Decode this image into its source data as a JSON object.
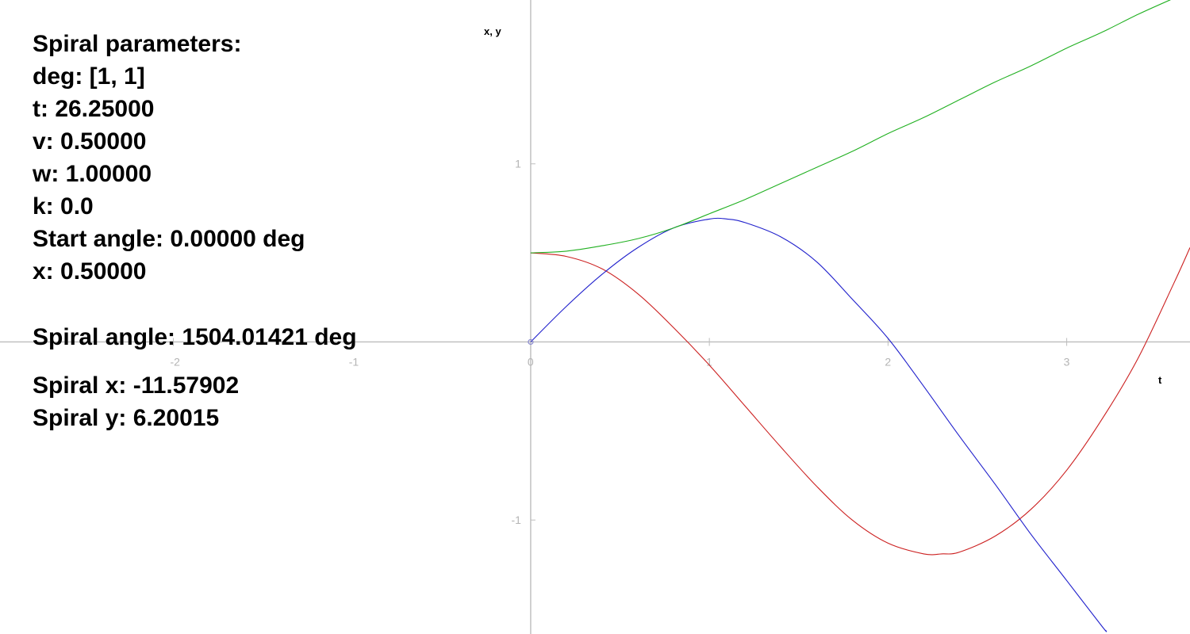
{
  "info_panel": {
    "heading": "Spiral parameters:",
    "deg": "deg: [1, 1]",
    "t": "t: 26.25000",
    "v": "v: 0.50000",
    "w": "w: 1.00000",
    "k": "k: 0.0",
    "start_angle": "Start angle: 0.00000 deg",
    "x": "x: 0.50000",
    "spiral_angle": "Spiral angle: 1504.01421 deg",
    "spiral_x": "Spiral x: -11.57902",
    "spiral_y": "Spiral y: 6.20015"
  },
  "chart_data": {
    "type": "line",
    "xlabel": "t",
    "ylabel": "x, y",
    "xlim": [
      -2.97,
      3.69
    ],
    "ylim": [
      -1.64,
      1.92
    ],
    "grid": false,
    "x_ticks": [
      -2,
      -1,
      0,
      1,
      2,
      3
    ],
    "x_tick_labels": [
      "-2",
      "-1",
      "0",
      "1",
      "2",
      "3"
    ],
    "y_ticks": [
      -1,
      1
    ],
    "y_tick_labels": [
      "-1",
      "1"
    ],
    "origin_marker": {
      "x": 0,
      "y": 0,
      "color": "#8a8ad0"
    },
    "series": [
      {
        "color": "#cc2020",
        "x": [
          0,
          0.2,
          0.4,
          0.6,
          0.8,
          1.0,
          1.2,
          1.4,
          1.6,
          1.8,
          2.0,
          2.2,
          2.3,
          2.4,
          2.6,
          2.8,
          3.0,
          3.2,
          3.4,
          3.6,
          3.69
        ],
        "y": [
          0.5,
          0.48,
          0.41,
          0.27,
          0.08,
          -0.13,
          -0.36,
          -0.59,
          -0.81,
          -1.0,
          -1.13,
          -1.19,
          -1.19,
          -1.18,
          -1.09,
          -0.94,
          -0.72,
          -0.43,
          -0.09,
          0.33,
          0.53
        ]
      },
      {
        "color": "#2020cc",
        "x": [
          0,
          0.2,
          0.4,
          0.6,
          0.8,
          1.0,
          1.1,
          1.2,
          1.4,
          1.6,
          1.8,
          2.0,
          2.2,
          2.4,
          2.6,
          2.8,
          3.0,
          3.2,
          3.22
        ],
        "y": [
          0,
          0.2,
          0.38,
          0.53,
          0.64,
          0.69,
          0.69,
          0.67,
          0.59,
          0.45,
          0.24,
          0.02,
          -0.25,
          -0.53,
          -0.8,
          -1.08,
          -1.34,
          -1.6,
          -1.62
        ]
      },
      {
        "color": "#20b020",
        "x": [
          0,
          0.2,
          0.4,
          0.6,
          0.8,
          1.0,
          1.2,
          1.4,
          1.6,
          1.8,
          2.0,
          2.2,
          2.4,
          2.6,
          2.8,
          3.0,
          3.2,
          3.4,
          3.6,
          3.69
        ],
        "y": [
          0.5,
          0.51,
          0.54,
          0.58,
          0.64,
          0.72,
          0.8,
          0.89,
          0.98,
          1.07,
          1.17,
          1.26,
          1.36,
          1.46,
          1.55,
          1.65,
          1.74,
          1.84,
          1.93,
          1.97
        ]
      }
    ]
  }
}
